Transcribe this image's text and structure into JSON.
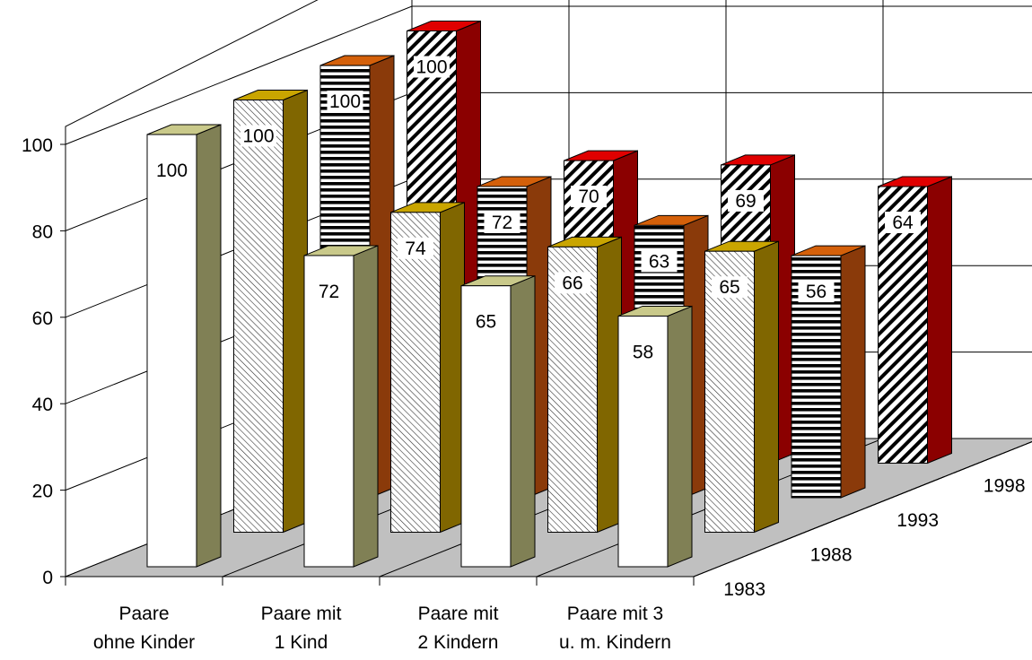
{
  "chart_data": {
    "type": "bar",
    "subtype": "3d-clustered-depth",
    "title": "",
    "xlabel": "",
    "ylabel": "",
    "ylim": [
      0,
      100
    ],
    "yticks": [
      0,
      20,
      40,
      60,
      80,
      100
    ],
    "grid": true,
    "legend": "none",
    "categories": [
      "Paare ohne Kinder",
      "Paare mit 1 Kind",
      "Paare mit 2 Kindern",
      "Paare mit 3 u. m. Kindern"
    ],
    "category_lines": [
      [
        "Paare",
        "ohne Kinder"
      ],
      [
        "Paare mit",
        "1 Kind"
      ],
      [
        "Paare mit",
        "2 Kindern"
      ],
      [
        "Paare mit 3",
        "u. m. Kindern"
      ]
    ],
    "series": [
      {
        "name": "1983",
        "values": [
          100,
          72,
          65,
          58
        ],
        "pattern": "solid-white",
        "side_color": "#808055",
        "top_color": "#c9c98a"
      },
      {
        "name": "1988",
        "values": [
          100,
          74,
          66,
          65
        ],
        "pattern": "fine-diagonal",
        "side_color": "#806600",
        "top_color": "#c9a500"
      },
      {
        "name": "1993",
        "values": [
          100,
          72,
          63,
          56
        ],
        "pattern": "horizontal-stripes",
        "side_color": "#8a3a0a",
        "top_color": "#d4600a"
      },
      {
        "name": "1998",
        "values": [
          100,
          70,
          69,
          64
        ],
        "pattern": "wide-diagonal",
        "side_color": "#8b0000",
        "top_color": "#e00000"
      }
    ]
  }
}
